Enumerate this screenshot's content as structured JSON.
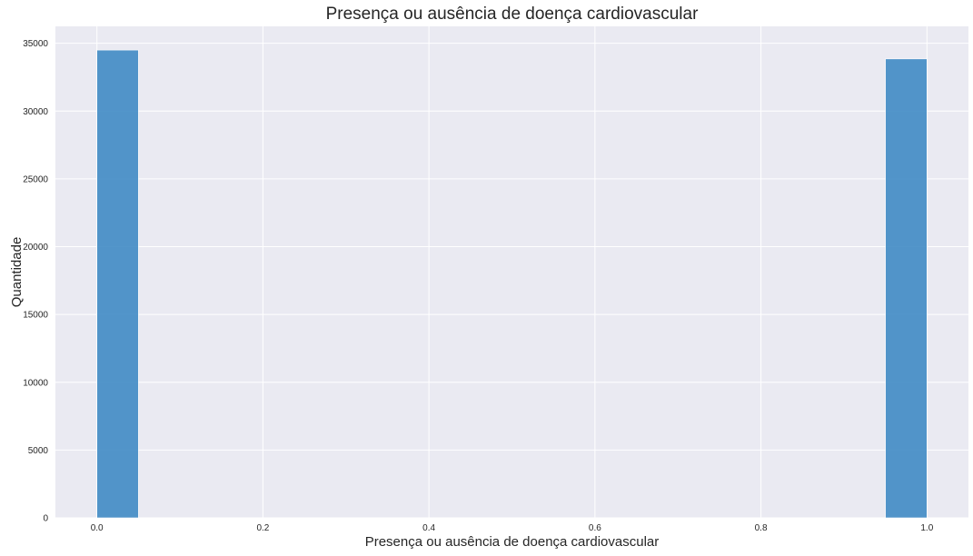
{
  "chart_data": {
    "type": "bar",
    "title": "Presença ou ausência de doença cardiovascular",
    "xlabel": "Presença ou ausência de doença cardiovascular",
    "ylabel": "Quantidade",
    "xlim": [
      -0.05,
      1.05
    ],
    "ylim": [
      0,
      36250
    ],
    "x_ticks": [
      "0.0",
      "0.2",
      "0.4",
      "0.6",
      "0.8",
      "1.0"
    ],
    "y_ticks": [
      "0",
      "5000",
      "10000",
      "15000",
      "20000",
      "25000",
      "30000",
      "35000"
    ],
    "bins": [
      {
        "x_start": 0.0,
        "x_end": 0.05,
        "value": 34500
      },
      {
        "x_start": 0.95,
        "x_end": 1.0,
        "value": 33850
      }
    ],
    "grid": true,
    "background": "#eaeaf2",
    "bar_color": "#3b88c3"
  }
}
